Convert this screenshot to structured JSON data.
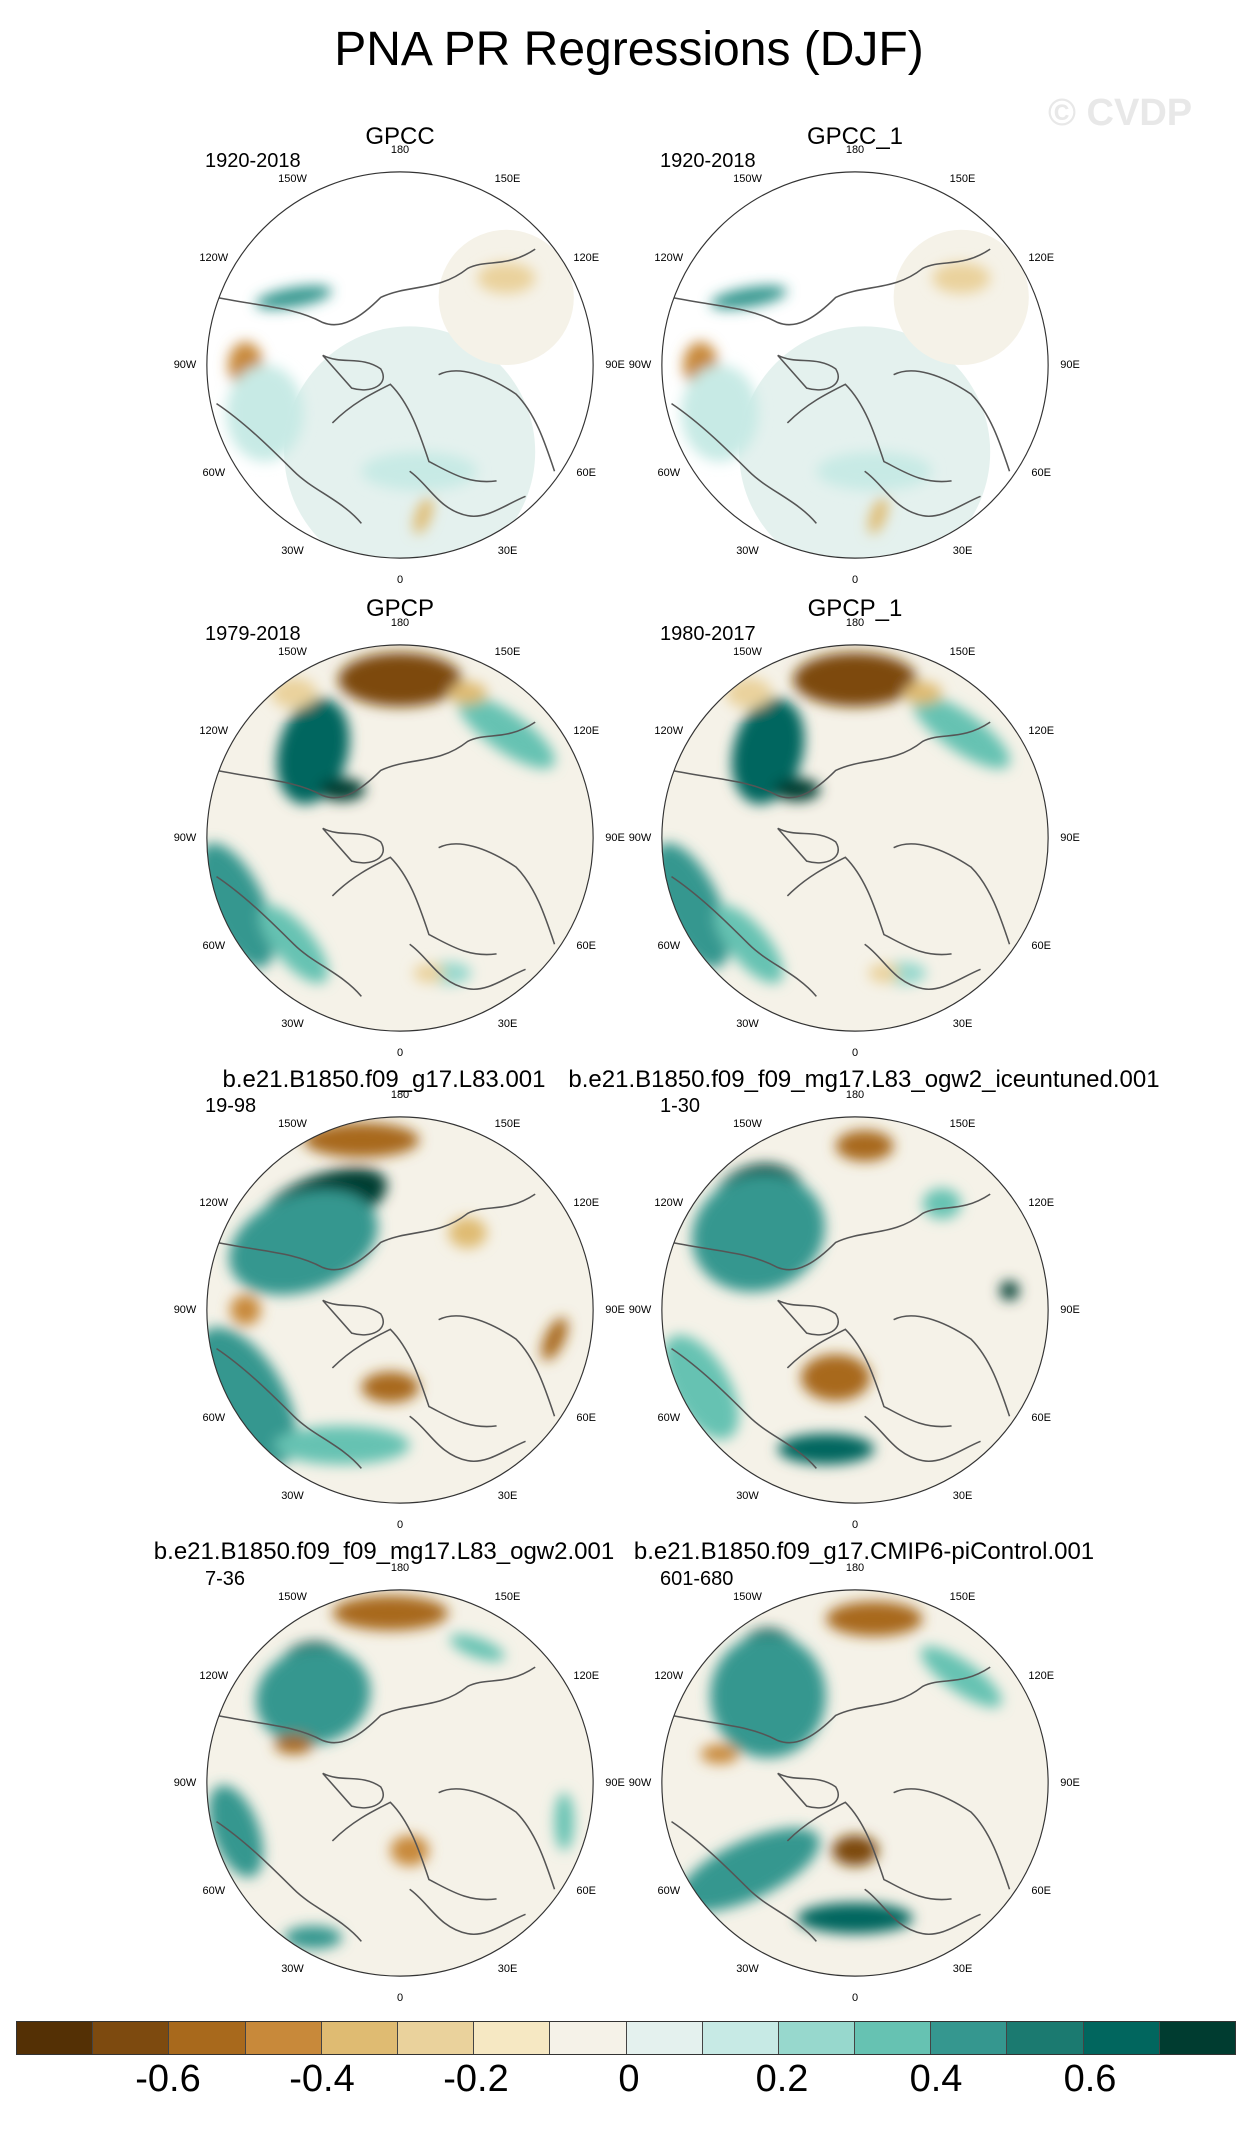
{
  "title": "PNA PR Regressions (DJF)",
  "watermark": "© CVDP",
  "panels": [
    {
      "title": "GPCC",
      "years": "1920-2018",
      "style": "gpcc"
    },
    {
      "title": "GPCC_1",
      "years": "1920-2018",
      "style": "gpcc"
    },
    {
      "title": "GPCP",
      "years": "1979-2018",
      "style": "obs"
    },
    {
      "title": "GPCP_1",
      "years": "1980-2017",
      "style": "obs"
    },
    {
      "title": "b.e21.B1850.f09_g17.L83.001",
      "years": "19-98",
      "style": "model1"
    },
    {
      "title": "b.e21.B1850.f09_f09_mg17.L83_ogw2_iceuntuned.001",
      "years": "1-30",
      "style": "model2"
    },
    {
      "title": "b.e21.B1850.f09_f09_mg17.L83_ogw2.001",
      "years": "7-36",
      "style": "model3"
    },
    {
      "title": "b.e21.B1850.f09_g17.CMIP6-piControl.001",
      "years": "601-680",
      "style": "model4"
    }
  ],
  "longitude_labels": [
    "180",
    "150E",
    "120E",
    "90E",
    "60E",
    "30E",
    "0",
    "30W",
    "60W",
    "90W",
    "120W",
    "150W"
  ],
  "colorbar": {
    "colors": [
      "#543005",
      "#7d4a0f",
      "#a8691c",
      "#c8893a",
      "#dfbb72",
      "#ead29c",
      "#f6e8c3",
      "#f5f2e8",
      "#e4f1ee",
      "#c7eae5",
      "#97d8cd",
      "#66c2b2",
      "#35978f",
      "#1b7a70",
      "#01665e",
      "#003c30"
    ],
    "labels": [
      "-0.6",
      "-0.4",
      "-0.2",
      "0",
      "0.2",
      "0.4",
      "0.6"
    ]
  }
}
